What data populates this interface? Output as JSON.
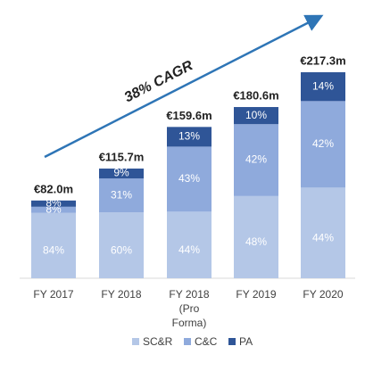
{
  "chart_data": {
    "type": "stacked_bar",
    "annotation": "38% CAGR",
    "categories": [
      "FY 2017",
      "FY 2018",
      "FY 2018 (Pro Forma)",
      "FY 2019",
      "FY 2020"
    ],
    "totals": {
      "values": [
        82.0,
        115.7,
        159.6,
        180.6,
        217.3
      ],
      "value_labels": [
        "€82.0m",
        "€115.7m",
        "€159.6m",
        "€180.6m",
        "€217.3m"
      ]
    },
    "series": [
      {
        "name": "SC&R",
        "color": "#b4c7e7",
        "values": [
          84,
          60,
          44,
          48,
          44
        ],
        "value_labels": [
          "84%",
          "60%",
          "44%",
          "48%",
          "44%"
        ]
      },
      {
        "name": "C&C",
        "color": "#8faadc",
        "values": [
          8,
          31,
          43,
          42,
          42
        ],
        "value_labels": [
          "8%",
          "31%",
          "43%",
          "42%",
          "42%"
        ]
      },
      {
        "name": "PA",
        "color": "#2f5597",
        "values": [
          8,
          9,
          13,
          10,
          14
        ],
        "value_labels": [
          "8%",
          "9%",
          "13%",
          "10%",
          "14%"
        ]
      }
    ]
  }
}
